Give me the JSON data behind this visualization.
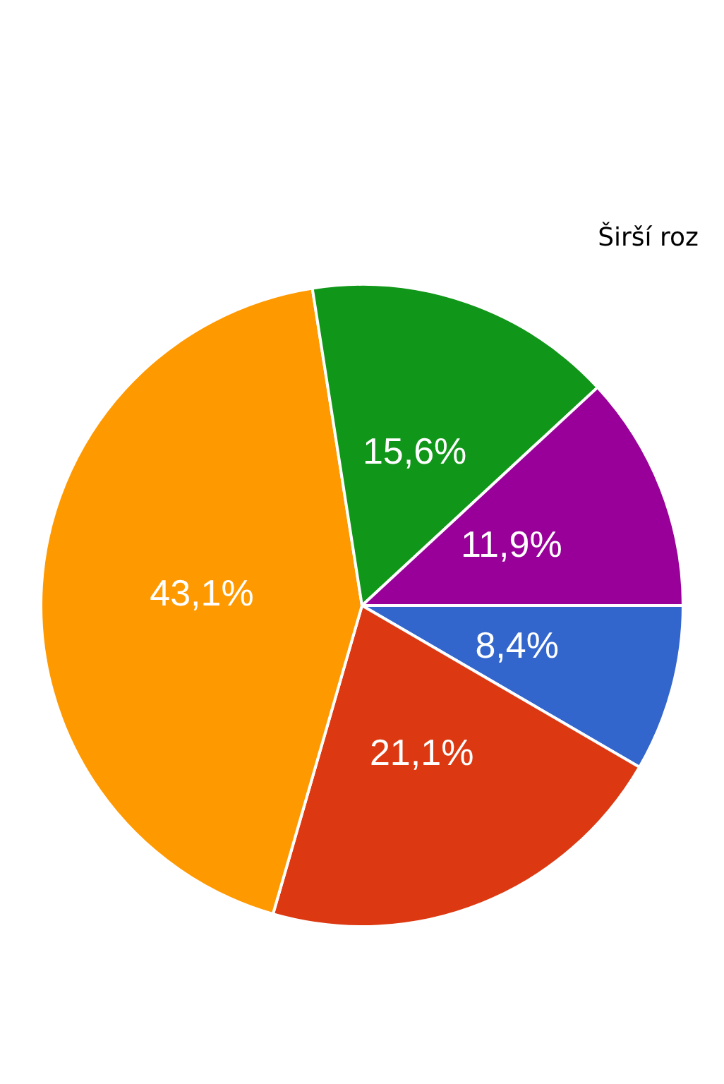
{
  "chart_data": {
    "type": "pie",
    "categories": [
      null,
      null,
      null,
      null,
      null
    ],
    "values": [
      8.4,
      21.1,
      43.1,
      15.6,
      11.9
    ],
    "colors": [
      "#3366cc",
      "#dc3912",
      "#ff9900",
      "#109618",
      "#990099"
    ],
    "value_labels": [
      "8,4%",
      "21,1%",
      "43,1%",
      "15,6%",
      "11,9%"
    ],
    "annotations": [
      "Širší roz"
    ],
    "legend": false
  }
}
